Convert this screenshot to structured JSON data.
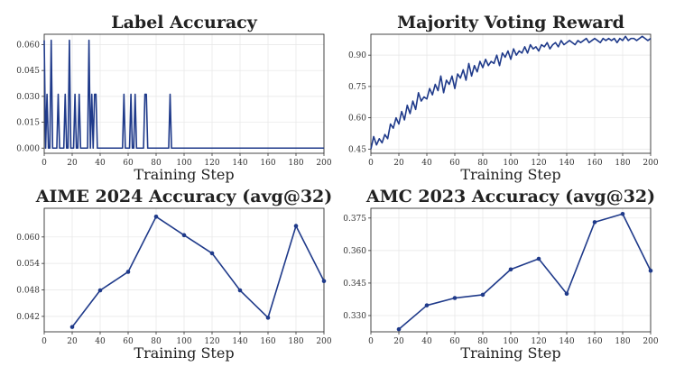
{
  "chart_data": [
    {
      "type": "line",
      "title": "Label Accuracy",
      "xlabel": "Training Step",
      "ylabel": "",
      "xlim": [
        0,
        200
      ],
      "ylim": [
        -0.003,
        0.066
      ],
      "xticks": [
        0,
        20,
        40,
        60,
        80,
        100,
        120,
        140,
        160,
        180,
        200
      ],
      "yticks": [
        0.0,
        0.015,
        0.03,
        0.045,
        0.06
      ],
      "ytick_labels": [
        "0.000",
        "0.015",
        "0.030",
        "0.045",
        "0.060"
      ],
      "grid": true,
      "markers": false,
      "color": "#1f3a8a",
      "series": [
        {
          "x": [
            0,
            1,
            2,
            3,
            4,
            5,
            6,
            7,
            8,
            9,
            10,
            11,
            12,
            13,
            14,
            15,
            16,
            17,
            18,
            19,
            20,
            21,
            22,
            23,
            24,
            25,
            26,
            27,
            28,
            29,
            30,
            31,
            32,
            33,
            34,
            35,
            36,
            37,
            38,
            39,
            40,
            41,
            42,
            43,
            44,
            45,
            46,
            47,
            48,
            49,
            50,
            51,
            52,
            53,
            54,
            55,
            56,
            57,
            58,
            59,
            60,
            61,
            62,
            63,
            64,
            65,
            66,
            67,
            68,
            69,
            70,
            71,
            72,
            73,
            74,
            75,
            76,
            77,
            78,
            79,
            80,
            81,
            82,
            83,
            84,
            85,
            86,
            87,
            88,
            89,
            90,
            91,
            92,
            93,
            94,
            95,
            96,
            97,
            98,
            99,
            100,
            105,
            110,
            115,
            120,
            125,
            130,
            135,
            140,
            145,
            150,
            155,
            160,
            165,
            170,
            175,
            180,
            185,
            190,
            195,
            200
          ],
          "y": [
            0.0625,
            0,
            0.0312,
            0,
            0,
            0.0625,
            0,
            0,
            0,
            0,
            0.0312,
            0,
            0,
            0,
            0,
            0.0312,
            0,
            0,
            0.0625,
            0,
            0,
            0,
            0.0312,
            0,
            0,
            0.0312,
            0,
            0,
            0,
            0,
            0,
            0,
            0.0625,
            0,
            0.0312,
            0,
            0.0312,
            0.0312,
            0,
            0,
            0,
            0,
            0,
            0,
            0,
            0,
            0,
            0,
            0,
            0,
            0,
            0,
            0,
            0,
            0,
            0,
            0,
            0.0312,
            0,
            0,
            0,
            0,
            0.0312,
            0,
            0,
            0.0312,
            0,
            0,
            0,
            0,
            0,
            0,
            0.0312,
            0.0312,
            0,
            0,
            0,
            0,
            0,
            0,
            0,
            0,
            0,
            0,
            0,
            0,
            0,
            0,
            0,
            0,
            0.0312,
            0,
            0,
            0,
            0,
            0,
            0,
            0,
            0,
            0,
            0,
            0,
            0,
            0,
            0,
            0,
            0,
            0,
            0,
            0,
            0,
            0,
            0,
            0,
            0,
            0,
            0,
            0,
            0,
            0,
            0
          ]
        }
      ]
    },
    {
      "type": "line",
      "title": "Majority Voting Reward",
      "xlabel": "Training Step",
      "ylabel": "",
      "xlim": [
        0,
        200
      ],
      "ylim": [
        0.43,
        1.0
      ],
      "xticks": [
        0,
        20,
        40,
        60,
        80,
        100,
        120,
        140,
        160,
        180,
        200
      ],
      "yticks": [
        0.45,
        0.6,
        0.75,
        0.9
      ],
      "ytick_labels": [
        "0.45",
        "0.60",
        "0.75",
        "0.90"
      ],
      "grid": true,
      "markers": false,
      "color": "#1f3a8a",
      "series": [
        {
          "x": [
            0,
            2,
            4,
            6,
            8,
            10,
            12,
            14,
            16,
            18,
            20,
            22,
            24,
            26,
            28,
            30,
            32,
            34,
            36,
            38,
            40,
            42,
            44,
            46,
            48,
            50,
            52,
            54,
            56,
            58,
            60,
            62,
            64,
            66,
            68,
            70,
            72,
            74,
            76,
            78,
            80,
            82,
            84,
            86,
            88,
            90,
            92,
            94,
            96,
            98,
            100,
            102,
            104,
            106,
            108,
            110,
            112,
            114,
            116,
            118,
            120,
            122,
            124,
            126,
            128,
            130,
            132,
            134,
            136,
            138,
            140,
            142,
            144,
            146,
            148,
            150,
            152,
            154,
            156,
            158,
            160,
            162,
            164,
            166,
            168,
            170,
            172,
            174,
            176,
            178,
            180,
            182,
            184,
            186,
            188,
            190,
            192,
            194,
            196,
            198,
            200
          ],
          "y": [
            0.45,
            0.51,
            0.47,
            0.5,
            0.48,
            0.52,
            0.5,
            0.57,
            0.55,
            0.6,
            0.57,
            0.63,
            0.59,
            0.66,
            0.62,
            0.68,
            0.64,
            0.72,
            0.68,
            0.7,
            0.69,
            0.74,
            0.71,
            0.76,
            0.73,
            0.8,
            0.72,
            0.78,
            0.76,
            0.8,
            0.74,
            0.81,
            0.79,
            0.83,
            0.78,
            0.86,
            0.8,
            0.85,
            0.82,
            0.87,
            0.84,
            0.88,
            0.85,
            0.87,
            0.86,
            0.9,
            0.85,
            0.91,
            0.89,
            0.92,
            0.88,
            0.93,
            0.9,
            0.92,
            0.91,
            0.94,
            0.91,
            0.95,
            0.93,
            0.94,
            0.92,
            0.95,
            0.94,
            0.96,
            0.93,
            0.95,
            0.96,
            0.94,
            0.97,
            0.95,
            0.96,
            0.97,
            0.96,
            0.95,
            0.97,
            0.96,
            0.97,
            0.98,
            0.96,
            0.97,
            0.98,
            0.97,
            0.96,
            0.98,
            0.97,
            0.98,
            0.97,
            0.98,
            0.96,
            0.98,
            0.97,
            0.99,
            0.97,
            0.98,
            0.98,
            0.97,
            0.98,
            0.99,
            0.98,
            0.97,
            0.98
          ]
        }
      ]
    },
    {
      "type": "line",
      "title": "AIME 2024 Accuracy (avg@32)",
      "xlabel": "Training Step",
      "ylabel": "",
      "xlim": [
        0,
        200
      ],
      "ylim": [
        0.0385,
        0.0665
      ],
      "xticks": [
        0,
        20,
        40,
        60,
        80,
        100,
        120,
        140,
        160,
        180,
        200
      ],
      "yticks": [
        0.042,
        0.048,
        0.054,
        0.06
      ],
      "ytick_labels": [
        "0.042",
        "0.048",
        "0.054",
        "0.060"
      ],
      "grid": true,
      "markers": true,
      "color": "#1f3a8a",
      "series": [
        {
          "x": [
            20,
            40,
            60,
            80,
            100,
            120,
            140,
            160,
            180,
            200
          ],
          "y": [
            0.0396,
            0.0479,
            0.0521,
            0.0646,
            0.0604,
            0.0563,
            0.0479,
            0.0417,
            0.0625,
            0.05
          ]
        }
      ]
    },
    {
      "type": "line",
      "title": "AMC 2023 Accuracy (avg@32)",
      "xlabel": "Training Step",
      "ylabel": "",
      "xlim": [
        0,
        200
      ],
      "ylim": [
        0.3225,
        0.3795
      ],
      "xticks": [
        0,
        20,
        40,
        60,
        80,
        100,
        120,
        140,
        160,
        180,
        200
      ],
      "yticks": [
        0.33,
        0.345,
        0.36,
        0.375
      ],
      "ytick_labels": [
        "0.330",
        "0.345",
        "0.360",
        "0.375"
      ],
      "grid": true,
      "markers": true,
      "color": "#1f3a8a",
      "series": [
        {
          "x": [
            20,
            40,
            60,
            80,
            100,
            120,
            140,
            160,
            180,
            200
          ],
          "y": [
            0.3237,
            0.3347,
            0.3381,
            0.3396,
            0.3513,
            0.3562,
            0.3401,
            0.3731,
            0.3769,
            0.3507
          ]
        }
      ]
    }
  ]
}
